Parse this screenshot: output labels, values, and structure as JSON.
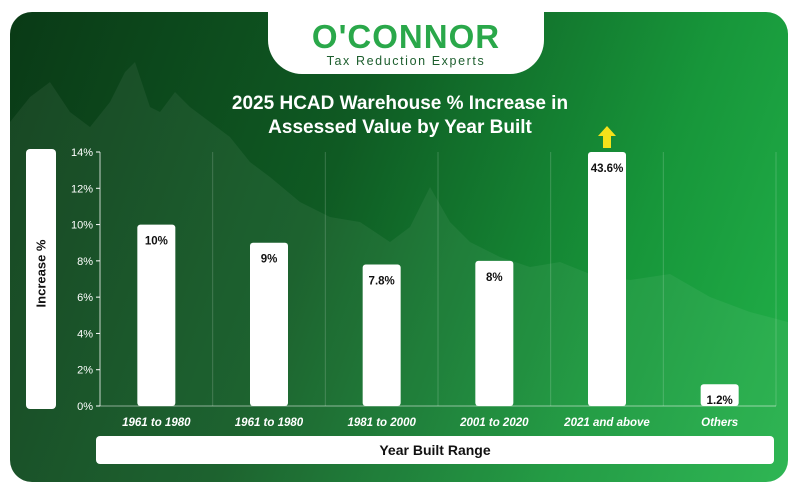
{
  "logo": {
    "name": "O'CONNOR",
    "tagline": "Tax Reduction Experts"
  },
  "colors": {
    "brand_green": "#2aa84a",
    "bar": "#ffffff",
    "arrow": "#f5e11a"
  },
  "chart_data": {
    "type": "bar",
    "title_line1": "2025 HCAD Warehouse % Increase in",
    "title_line2": "Assessed Value by Year Built",
    "xlabel": "Year Built Range",
    "ylabel": "Increase %",
    "categories": [
      "1961 to 1980",
      "1961 to 1980",
      "1981 to 2000",
      "2001 to 2020",
      "2021 and above",
      "Others"
    ],
    "values": [
      10,
      9,
      7.8,
      8,
      43.6,
      1.2
    ],
    "value_labels": [
      "10%",
      "9%",
      "7.8%",
      "8%",
      "43.6%",
      "1.2%"
    ],
    "yticks": [
      0,
      2,
      4,
      6,
      8,
      10,
      12,
      14
    ],
    "ytick_labels": [
      "0%",
      "2%",
      "4%",
      "6%",
      "8%",
      "10%",
      "12%",
      "14%"
    ],
    "ylim": [
      0,
      14
    ],
    "clipped_bar_indicator": "up-arrow",
    "grid": "vertical"
  }
}
